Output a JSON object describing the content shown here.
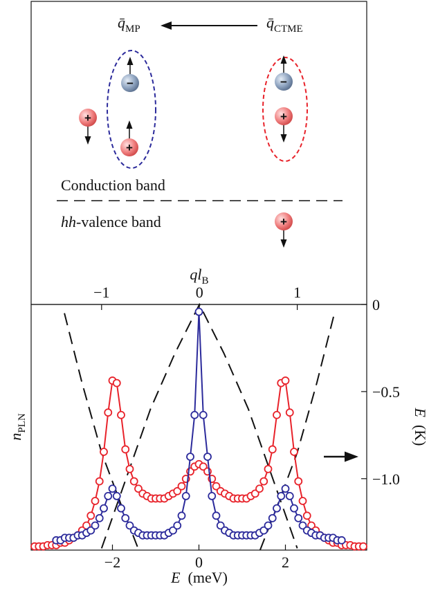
{
  "diagram": {
    "q_mp": {
      "main": "q̄",
      "sub": "MP"
    },
    "q_ctme": {
      "main": "q̄",
      "sub": "CTME"
    },
    "conduction_band": "Conduction band",
    "valence_band": {
      "prefix": "hh",
      "rest": "-valence band"
    },
    "hole_sign": "+",
    "electron_sign": "−"
  },
  "chart_data": {
    "type": "line",
    "xlabel": {
      "main": "E",
      "rest": "  (meV)"
    },
    "ylabel": {
      "main": "n",
      "sub": "PLN"
    },
    "y2label": {
      "main": "E",
      "rest": "  (K)"
    },
    "x2label": {
      "main": "ql",
      "sub": "B"
    },
    "xlim": [
      -3.88,
      3.88
    ],
    "xticks": [
      {
        "value": -2,
        "label": "−2"
      },
      0,
      2
    ],
    "x2lim": [
      -1.72,
      1.71
    ],
    "x2ticks": [
      {
        "value": -1,
        "label": "−1"
      },
      0,
      1
    ],
    "ylim": [
      0,
      1
    ],
    "y2lim": [
      -1.41,
      0
    ],
    "y2ticks": [
      0,
      {
        "value": -0.5,
        "label": "−0.5"
      },
      {
        "value": -1.0,
        "label": "−1.0"
      }
    ],
    "x": [
      -3.8,
      -3.7,
      -3.6,
      -3.5,
      -3.4,
      -3.3,
      -3.2,
      -3.1,
      -3.0,
      -2.9,
      -2.8,
      -2.7,
      -2.6,
      -2.5,
      -2.4,
      -2.3,
      -2.2,
      -2.1,
      -2.0,
      -1.9,
      -1.8,
      -1.7,
      -1.6,
      -1.5,
      -1.4,
      -1.3,
      -1.2,
      -1.1,
      -1.0,
      -0.9,
      -0.8,
      -0.7,
      -0.6,
      -0.5,
      -0.4,
      -0.3,
      -0.2,
      -0.1,
      0,
      0.1,
      0.2,
      0.3,
      0.4,
      0.5,
      0.6,
      0.7,
      0.8,
      0.9,
      1.0,
      1.1,
      1.2,
      1.3,
      1.4,
      1.5,
      1.6,
      1.7,
      1.8,
      1.9,
      2.0,
      2.1,
      2.2,
      2.3,
      2.4,
      2.5,
      2.6,
      2.7,
      2.8,
      2.9,
      3.0,
      3.1,
      3.2,
      3.3,
      3.4,
      3.5,
      3.6,
      3.7,
      3.8
    ],
    "series": [
      {
        "color": "#e8222a",
        "values": [
          0.015,
          0.015,
          0.015,
          0.02,
          0.02,
          0.02,
          0.03,
          0.03,
          0.04,
          0.05,
          0.06,
          0.08,
          0.1,
          0.14,
          0.2,
          0.28,
          0.4,
          0.56,
          0.69,
          0.68,
          0.55,
          0.41,
          0.33,
          0.28,
          0.25,
          0.23,
          0.22,
          0.21,
          0.21,
          0.21,
          0.21,
          0.22,
          0.23,
          0.24,
          0.26,
          0.29,
          0.32,
          0.34,
          0.35,
          0.34,
          0.32,
          0.29,
          0.26,
          0.24,
          0.23,
          0.22,
          0.21,
          0.21,
          0.21,
          0.21,
          0.22,
          0.23,
          0.25,
          0.28,
          0.33,
          0.41,
          0.55,
          0.68,
          0.69,
          0.56,
          0.4,
          0.28,
          0.2,
          0.14,
          0.1,
          0.08,
          0.06,
          0.05,
          0.04,
          0.03,
          0.03,
          0.02,
          0.02,
          0.02,
          0.015,
          0.015,
          0.015
        ]
      },
      {
        "color": "#2b2a9b",
        "values": [
          null,
          null,
          null,
          null,
          null,
          0.04,
          0.04,
          0.05,
          0.05,
          0.05,
          0.06,
          0.06,
          0.07,
          0.08,
          0.1,
          0.13,
          0.17,
          0.22,
          0.25,
          0.22,
          0.17,
          0.13,
          0.1,
          0.08,
          0.07,
          0.06,
          0.06,
          0.06,
          0.06,
          0.06,
          0.06,
          0.07,
          0.08,
          0.1,
          0.14,
          0.22,
          0.38,
          0.55,
          0.97,
          0.55,
          0.38,
          0.22,
          0.14,
          0.1,
          0.08,
          0.07,
          0.06,
          0.06,
          0.06,
          0.06,
          0.06,
          0.06,
          0.07,
          0.08,
          0.1,
          0.13,
          0.17,
          0.22,
          0.25,
          0.22,
          0.17,
          0.13,
          0.1,
          0.08,
          0.07,
          0.06,
          0.06,
          0.05,
          0.05,
          0.05,
          0.04,
          0.04,
          null,
          null,
          null,
          null,
          null
        ]
      }
    ],
    "dispersion": [
      {
        "color": "#111111",
        "axis": "y2",
        "x": [
          -1.0,
          -0.75,
          -0.5,
          -0.25,
          0,
          0.25,
          0.5,
          0.75,
          1.0
        ],
        "values": [
          -1.4,
          -1.0,
          -0.6,
          -0.28,
          0,
          -0.28,
          -0.6,
          -1.0,
          -1.4
        ]
      },
      {
        "color": "#111111",
        "axis": "y2",
        "x": [
          -1.38,
          -1.2,
          -1.0,
          -0.8,
          -0.62,
          null,
          0.62,
          0.8,
          1.0,
          1.2,
          1.38
        ],
        "values": [
          -0.05,
          -0.45,
          -0.85,
          -1.15,
          -1.41,
          null,
          -1.41,
          -1.15,
          -0.85,
          -0.45,
          -0.05
        ]
      }
    ]
  }
}
